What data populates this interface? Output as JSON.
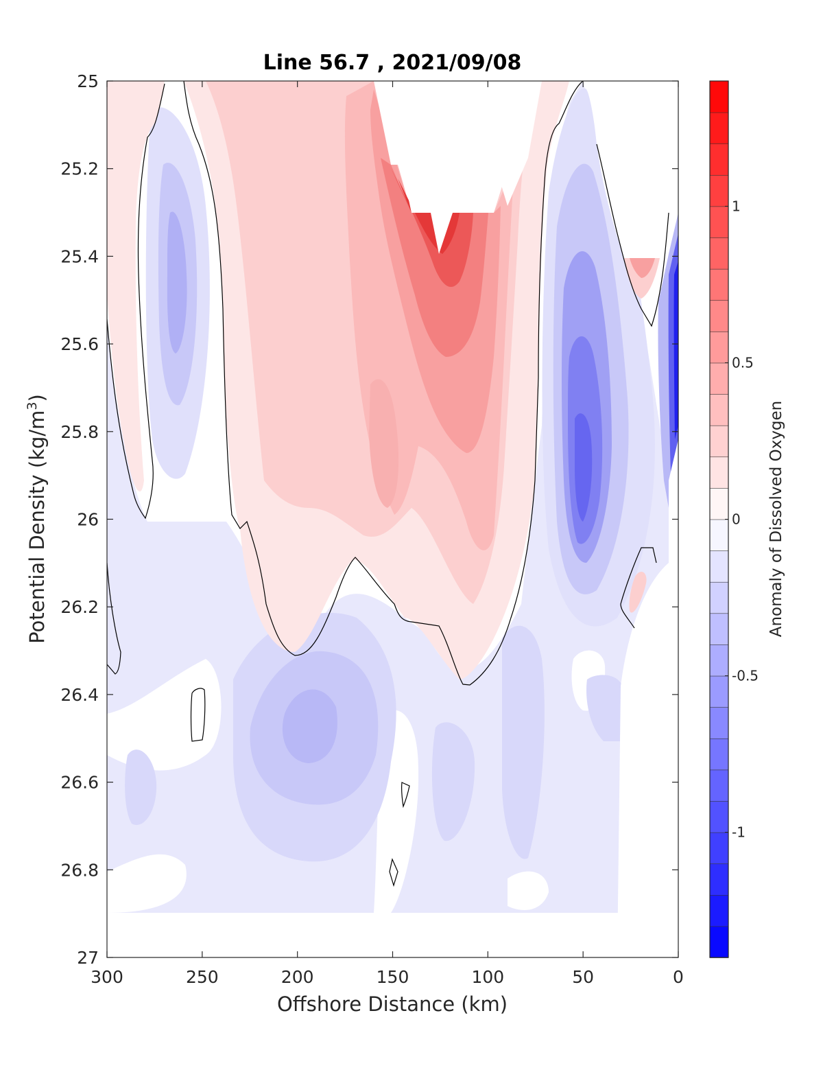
{
  "chart_data": {
    "type": "contour",
    "title": "Line 56.7 , 2021/09/08",
    "xlabel": "Offshore Distance (km)",
    "ylabel_main": "Potential Density (kg/m",
    "ylabel_sup": "3",
    "ylabel_close": ")",
    "colorbar_label": "Anomaly of Dissolved Oxygen",
    "xlim": [
      300,
      0
    ],
    "ylim": [
      25,
      27
    ],
    "x_reversed": true,
    "y_reversed": true,
    "x_ticks": [
      300,
      250,
      200,
      150,
      100,
      50,
      0
    ],
    "x_tick_labels": [
      "300",
      "250",
      "200",
      "150",
      "100",
      "50",
      "0"
    ],
    "y_ticks": [
      25,
      25.2,
      25.4,
      25.6,
      25.8,
      26,
      26.2,
      26.4,
      26.6,
      26.8,
      27
    ],
    "y_tick_labels": [
      "25",
      "25.2",
      "25.4",
      "25.6",
      "25.8",
      "26",
      "26.2",
      "26.4",
      "26.6",
      "26.8",
      "27"
    ],
    "colorbar": {
      "clim": [
        -1.4,
        1.4
      ],
      "step": 0.1,
      "ticks": [
        1,
        0.5,
        0,
        -0.5,
        -1
      ],
      "tick_labels": [
        "1",
        "0.5",
        "0",
        "-0.5",
        "-1"
      ],
      "low_color": "#0000ff",
      "mid_color": "#ffffff",
      "high_color": "#ff0000"
    },
    "zero_contour_color": "#000000",
    "features": [
      {
        "name": "positive anomaly core",
        "x": 125,
        "y": 25.45,
        "value": 0.95
      },
      {
        "name": "negative anomaly core offshore",
        "x": 265,
        "y": 25.45,
        "value": -0.35
      },
      {
        "name": "negative anomaly core nearshore",
        "x": 50,
        "y": 25.95,
        "value": -0.7
      },
      {
        "name": "negative anomaly deep",
        "x": 195,
        "y": 26.5,
        "value": -0.35
      },
      {
        "name": "negative anomaly coastal edge",
        "x": 3,
        "y": 25.7,
        "value": -1.3
      },
      {
        "name": "positive anomaly nearshore top",
        "x": 20,
        "y": 25.42,
        "value": 0.4
      }
    ]
  }
}
